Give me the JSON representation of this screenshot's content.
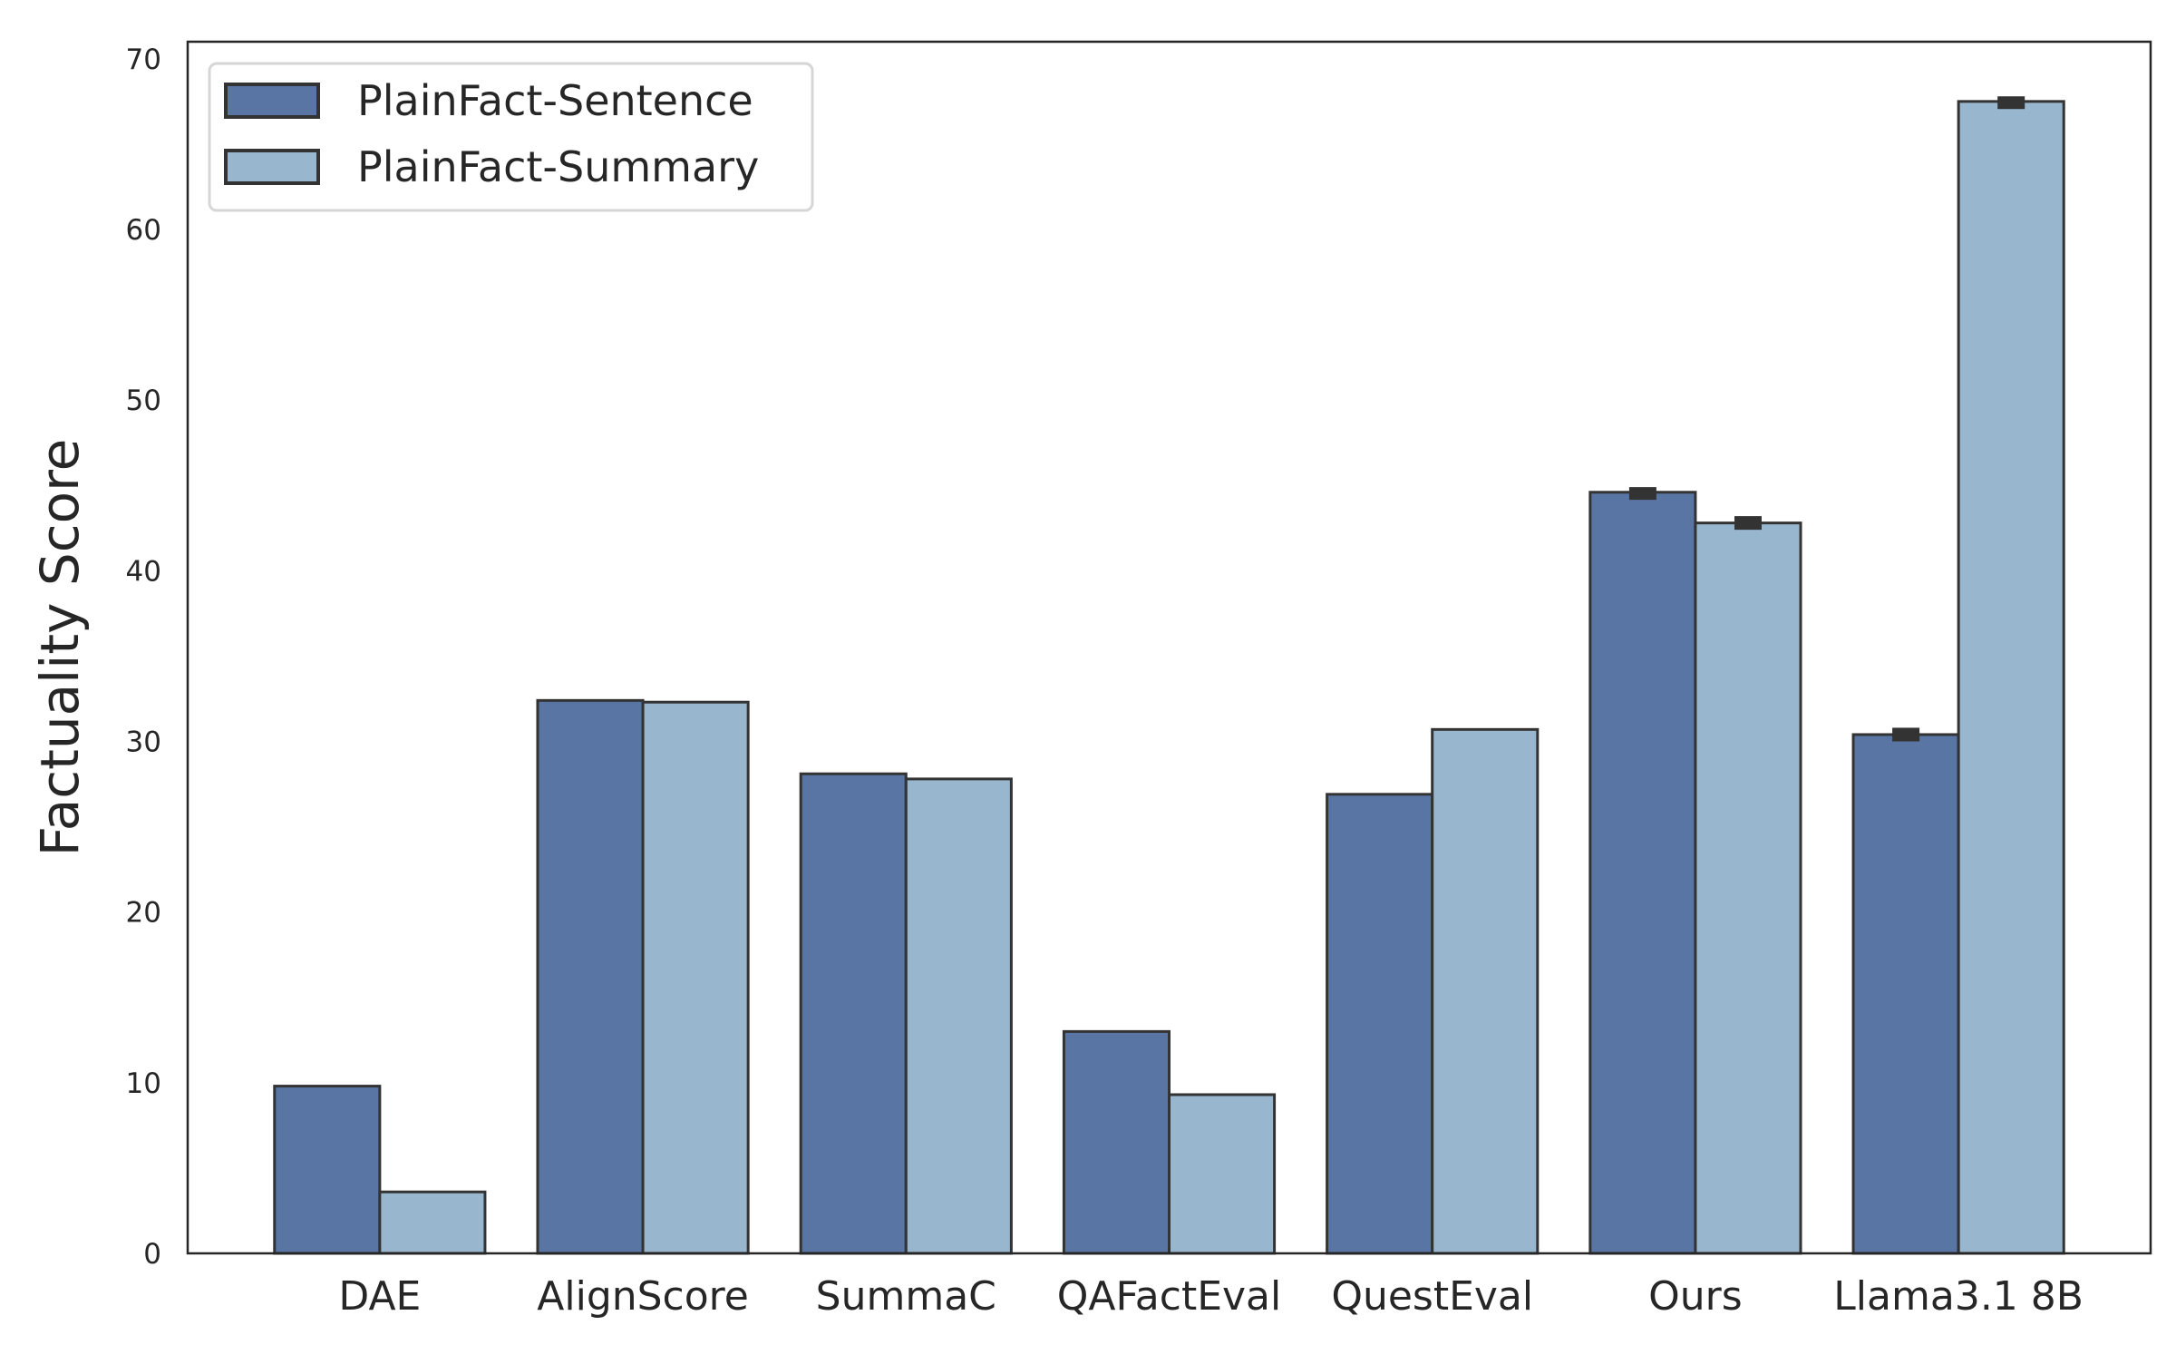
{
  "chart_data": {
    "type": "bar",
    "title": "",
    "xlabel": "",
    "ylabel": "Factuality Score",
    "ylim": [
      0,
      71
    ],
    "yticks": [
      0,
      10,
      20,
      30,
      40,
      50,
      60,
      70
    ],
    "grid": false,
    "legend_position": "top-left",
    "categories": [
      "DAE",
      "AlignScore",
      "SummaC",
      "QAFactEval",
      "QuestEval",
      "Ours",
      "Llama3.1 8B"
    ],
    "series": [
      {
        "name": "PlainFact-Sentence",
        "color": "#5975a4",
        "values": [
          9.8,
          32.4,
          28.1,
          13.0,
          26.9,
          44.6,
          30.4
        ],
        "error": [
          null,
          null,
          null,
          null,
          null,
          0.3,
          0.4
        ]
      },
      {
        "name": "PlainFact-Summary",
        "color": "#98b7cf",
        "values": [
          3.6,
          32.3,
          27.8,
          9.3,
          30.7,
          42.8,
          67.5
        ],
        "error": [
          null,
          null,
          null,
          null,
          null,
          0.4,
          0.3
        ]
      }
    ],
    "edge_color": "#333333"
  }
}
